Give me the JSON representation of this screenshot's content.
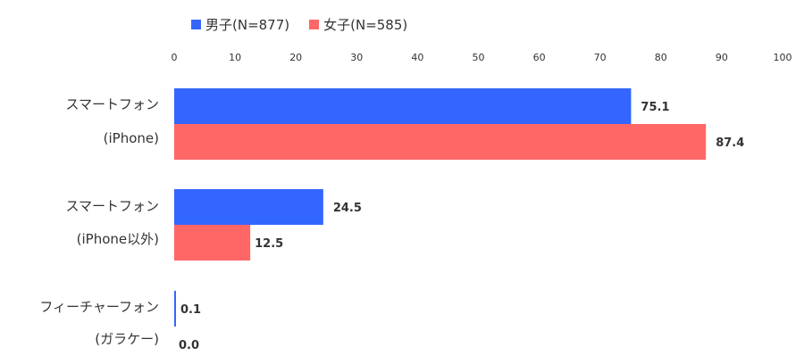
{
  "chart_data": {
    "type": "bar",
    "orientation": "horizontal",
    "categories": [
      [
        "スマートフォン",
        "(iPhone)"
      ],
      [
        "スマートフォン",
        "(iPhone以外)"
      ],
      [
        "フィーチャーフォン",
        "(ガラケー)"
      ]
    ],
    "series": [
      {
        "name": "男子(N=877)",
        "color": "#3366FF",
        "values": [
          75.1,
          24.5,
          0.1
        ],
        "labels": [
          "75.1",
          "24.5",
          "0.1"
        ]
      },
      {
        "name": "女子(N=585)",
        "color": "#FF6666",
        "values": [
          87.4,
          12.5,
          0.0
        ],
        "labels": [
          "87.4",
          "12.5",
          "0.0"
        ]
      }
    ],
    "xlim": [
      0,
      100
    ],
    "ticks": [
      "0",
      "10",
      "20",
      "30",
      "40",
      "50",
      "60",
      "70",
      "80",
      "90",
      "100"
    ],
    "grid": false,
    "legend_position": "top"
  }
}
